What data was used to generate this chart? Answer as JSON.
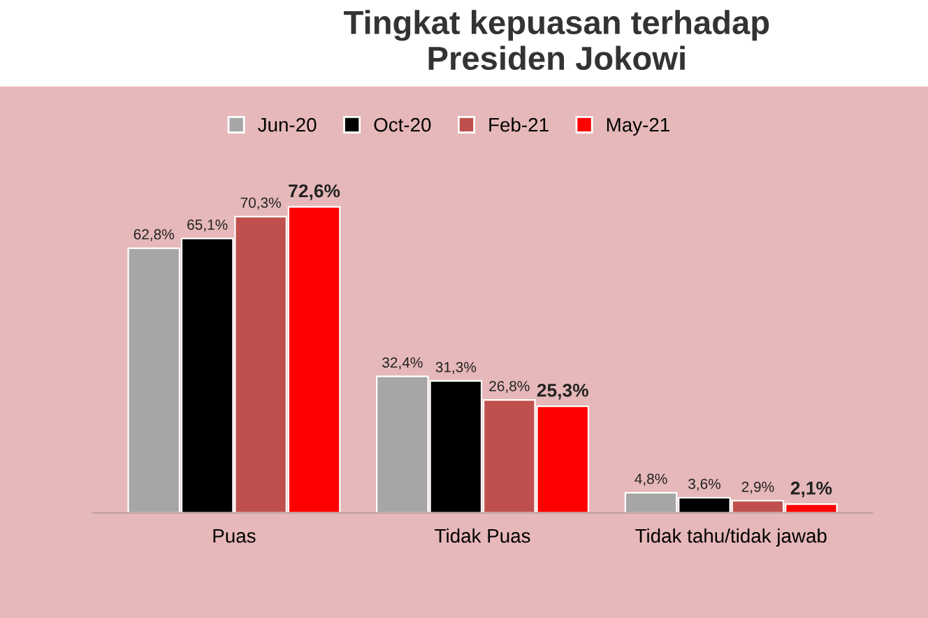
{
  "chart_data": {
    "type": "bar",
    "title": "Tingkat kepuasan terhadap\nPresiden Jokowi",
    "categories": [
      "Puas",
      "Tidak Puas",
      "Tidak tahu/tidak jawab"
    ],
    "series": [
      {
        "name": "Jun-20",
        "color": "#a6a6a6",
        "values": [
          62.8,
          32.4,
          4.8
        ],
        "value_labels": [
          "62,8%",
          "32,4%",
          "4,8%"
        ]
      },
      {
        "name": "Oct-20",
        "color": "#000000",
        "values": [
          65.1,
          31.3,
          3.6
        ],
        "value_labels": [
          "65,1%",
          "31,3%",
          "3,6%"
        ]
      },
      {
        "name": "Feb-21",
        "color": "#c0504d",
        "values": [
          70.3,
          26.8,
          2.9
        ],
        "value_labels": [
          "70,3%",
          "26,8%",
          "2,9%"
        ]
      },
      {
        "name": "May-21",
        "color": "#ff0000",
        "values": [
          72.6,
          25.3,
          2.1
        ],
        "value_labels": [
          "72,6%",
          "25,3%",
          "2,1%"
        ]
      }
    ],
    "legend": "top",
    "grid": false
  }
}
